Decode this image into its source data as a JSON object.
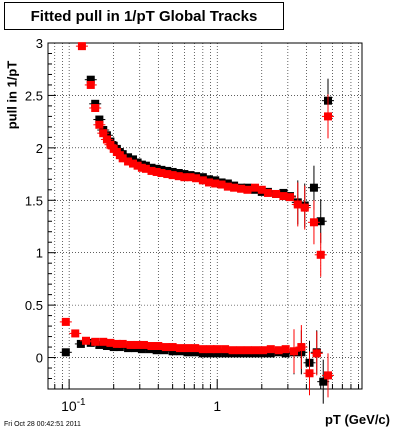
{
  "title": "Fitted pull in 1/pT  Global Tracks",
  "timestamp": "Fri Oct 28 00:42:51 2011",
  "chart_data": {
    "type": "scatter",
    "title": "Fitted pull in 1/pT  Global Tracks",
    "xlabel": "pT (GeV/c)",
    "ylabel": "pull in 1/pT",
    "xscale": "log",
    "xlim": [
      0.072,
      9.5
    ],
    "ylim": [
      -0.3,
      3.0
    ],
    "grid": true,
    "yticks": [
      "0",
      "0.5",
      "1",
      "1.5",
      "2",
      "2.5",
      "3"
    ],
    "xticks": [
      "10^-1",
      "1"
    ],
    "series": [
      {
        "color": "#000000",
        "points": [
          [
            0.095,
            0.05
          ],
          [
            0.12,
            0.13
          ],
          [
            0.14,
            2.65
          ],
          [
            0.15,
            2.42
          ],
          [
            0.16,
            2.27
          ],
          [
            0.17,
            2.17
          ],
          [
            0.18,
            2.12
          ],
          [
            0.19,
            2.06
          ],
          [
            0.2,
            2.02
          ],
          [
            0.21,
            1.99
          ],
          [
            0.22,
            1.96
          ],
          [
            0.23,
            1.94
          ],
          [
            0.25,
            1.91
          ],
          [
            0.27,
            1.89
          ],
          [
            0.29,
            1.86
          ],
          [
            0.31,
            1.84
          ],
          [
            0.33,
            1.83
          ],
          [
            0.36,
            1.81
          ],
          [
            0.39,
            1.8
          ],
          [
            0.42,
            1.79
          ],
          [
            0.46,
            1.78
          ],
          [
            0.5,
            1.77
          ],
          [
            0.55,
            1.76
          ],
          [
            0.6,
            1.75
          ],
          [
            0.66,
            1.74
          ],
          [
            0.72,
            1.73
          ],
          [
            0.8,
            1.72
          ],
          [
            0.88,
            1.7
          ],
          [
            0.97,
            1.69
          ],
          [
            1.07,
            1.67
          ],
          [
            1.18,
            1.66
          ],
          [
            1.3,
            1.64
          ],
          [
            1.45,
            1.62
          ],
          [
            1.6,
            1.62
          ],
          [
            1.8,
            1.6
          ],
          [
            2.0,
            1.58
          ],
          [
            2.2,
            1.58
          ],
          [
            2.5,
            1.56
          ],
          [
            2.8,
            1.57
          ],
          [
            3.1,
            1.54
          ],
          [
            3.5,
            1.48
          ],
          [
            3.9,
            1.45
          ],
          [
            4.5,
            1.62
          ],
          [
            5.0,
            1.3
          ],
          [
            5.6,
            2.45
          ],
          [
            0.14,
            0.14
          ],
          [
            0.16,
            0.12
          ],
          [
            0.18,
            0.11
          ],
          [
            0.2,
            0.1
          ],
          [
            0.22,
            0.1
          ],
          [
            0.25,
            0.09
          ],
          [
            0.28,
            0.09
          ],
          [
            0.31,
            0.08
          ],
          [
            0.35,
            0.08
          ],
          [
            0.39,
            0.07
          ],
          [
            0.44,
            0.07
          ],
          [
            0.5,
            0.06
          ],
          [
            0.56,
            0.06
          ],
          [
            0.63,
            0.05
          ],
          [
            0.71,
            0.05
          ],
          [
            0.8,
            0.04
          ],
          [
            0.9,
            0.04
          ],
          [
            1.0,
            0.04
          ],
          [
            1.13,
            0.04
          ],
          [
            1.27,
            0.04
          ],
          [
            1.43,
            0.04
          ],
          [
            1.61,
            0.04
          ],
          [
            1.81,
            0.04
          ],
          [
            2.04,
            0.04
          ],
          [
            2.3,
            0.04
          ],
          [
            2.6,
            0.05
          ],
          [
            2.9,
            0.04
          ],
          [
            3.3,
            0.05
          ],
          [
            3.7,
            0.05
          ],
          [
            4.2,
            -0.05
          ],
          [
            4.7,
            0.05
          ],
          [
            5.2,
            -0.23
          ]
        ]
      },
      {
        "color": "#ff0000",
        "points": [
          [
            0.095,
            0.34
          ],
          [
            0.11,
            0.23
          ],
          [
            0.122,
            2.97
          ],
          [
            0.14,
            2.6
          ],
          [
            0.15,
            2.38
          ],
          [
            0.16,
            2.22
          ],
          [
            0.17,
            2.14
          ],
          [
            0.18,
            2.08
          ],
          [
            0.19,
            2.03
          ],
          [
            0.2,
            1.99
          ],
          [
            0.21,
            1.96
          ],
          [
            0.22,
            1.93
          ],
          [
            0.23,
            1.9
          ],
          [
            0.25,
            1.87
          ],
          [
            0.27,
            1.85
          ],
          [
            0.29,
            1.83
          ],
          [
            0.31,
            1.81
          ],
          [
            0.33,
            1.8
          ],
          [
            0.36,
            1.78
          ],
          [
            0.39,
            1.77
          ],
          [
            0.42,
            1.76
          ],
          [
            0.46,
            1.75
          ],
          [
            0.5,
            1.74
          ],
          [
            0.55,
            1.73
          ],
          [
            0.6,
            1.72
          ],
          [
            0.66,
            1.72
          ],
          [
            0.72,
            1.71
          ],
          [
            0.8,
            1.69
          ],
          [
            0.88,
            1.67
          ],
          [
            0.97,
            1.66
          ],
          [
            1.07,
            1.65
          ],
          [
            1.18,
            1.63
          ],
          [
            1.3,
            1.62
          ],
          [
            1.45,
            1.61
          ],
          [
            1.6,
            1.6
          ],
          [
            1.8,
            1.62
          ],
          [
            2.0,
            1.6
          ],
          [
            2.2,
            1.57
          ],
          [
            2.5,
            1.56
          ],
          [
            2.8,
            1.54
          ],
          [
            3.1,
            1.53
          ],
          [
            3.5,
            1.46
          ],
          [
            3.9,
            1.43
          ],
          [
            4.5,
            1.29
          ],
          [
            5.0,
            0.98
          ],
          [
            5.6,
            2.3
          ],
          [
            0.13,
            0.16
          ],
          [
            0.15,
            0.15
          ],
          [
            0.17,
            0.15
          ],
          [
            0.19,
            0.14
          ],
          [
            0.21,
            0.13
          ],
          [
            0.23,
            0.13
          ],
          [
            0.26,
            0.12
          ],
          [
            0.29,
            0.12
          ],
          [
            0.32,
            0.12
          ],
          [
            0.36,
            0.11
          ],
          [
            0.4,
            0.11
          ],
          [
            0.45,
            0.1
          ],
          [
            0.5,
            0.1
          ],
          [
            0.56,
            0.09
          ],
          [
            0.63,
            0.09
          ],
          [
            0.71,
            0.09
          ],
          [
            0.8,
            0.08
          ],
          [
            0.9,
            0.08
          ],
          [
            1.0,
            0.08
          ],
          [
            1.13,
            0.08
          ],
          [
            1.27,
            0.07
          ],
          [
            1.43,
            0.07
          ],
          [
            1.61,
            0.07
          ],
          [
            1.81,
            0.07
          ],
          [
            2.04,
            0.07
          ],
          [
            2.3,
            0.08
          ],
          [
            2.6,
            0.07
          ],
          [
            2.9,
            0.08
          ],
          [
            3.3,
            0.06
          ],
          [
            3.7,
            0.1
          ],
          [
            4.2,
            -0.15
          ],
          [
            4.7,
            0.04
          ],
          [
            5.6,
            -0.17
          ]
        ]
      }
    ]
  }
}
